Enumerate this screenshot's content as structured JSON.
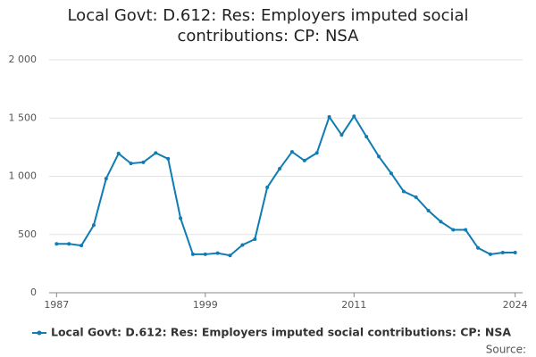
{
  "chart_data": {
    "type": "line",
    "title": "Local Govt: D.612: Res: Employers imputed social contributions: CP: NSA",
    "x": [
      1987,
      1988,
      1989,
      1990,
      1991,
      1992,
      1993,
      1994,
      1995,
      1996,
      1997,
      1998,
      1999,
      2000,
      2001,
      2002,
      2003,
      2004,
      2005,
      2006,
      2007,
      2008,
      2009,
      2010,
      2011,
      2012,
      2013,
      2014,
      2015,
      2016,
      2017,
      2018,
      2019,
      2020,
      2021,
      2022,
      2023,
      2024
    ],
    "series": [
      {
        "name": "Local Govt: D.612: Res: Employers imputed social contributions: CP: NSA",
        "color": "#0f7cb3",
        "values": [
          420,
          420,
          405,
          580,
          980,
          1195,
          1110,
          1120,
          1200,
          1150,
          640,
          330,
          330,
          340,
          320,
          410,
          460,
          905,
          1065,
          1210,
          1135,
          1200,
          1510,
          1355,
          1515,
          1340,
          1170,
          1025,
          870,
          820,
          705,
          610,
          540,
          540,
          385,
          330,
          345,
          345
        ]
      }
    ],
    "xlim": [
      1986.4,
      2024.6
    ],
    "xticks": [
      1987,
      1999,
      2011,
      2024
    ],
    "ylim": [
      0,
      2000
    ],
    "yticks": [
      0,
      500,
      {
        "value": 1000,
        "label": "1 000"
      },
      {
        "value": 1500,
        "label": "1 500"
      },
      {
        "value": 2000,
        "label": "2 000"
      }
    ],
    "grid": true,
    "source": "Source:"
  }
}
